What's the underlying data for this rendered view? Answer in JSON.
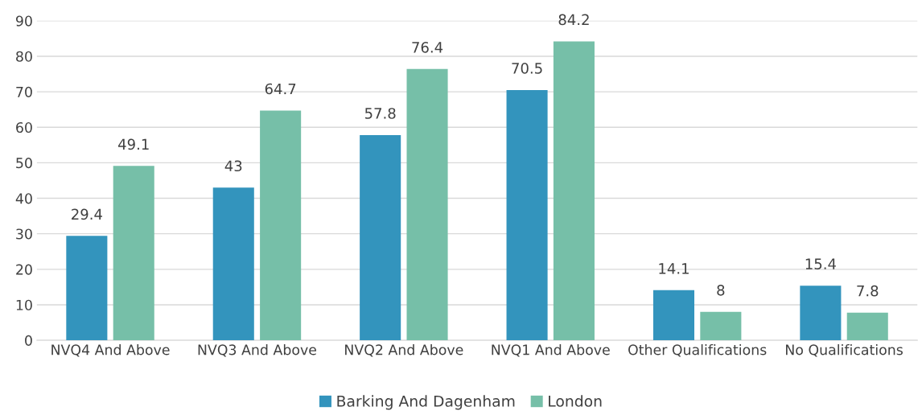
{
  "chart_data": {
    "type": "bar",
    "categories": [
      "NVQ4 And Above",
      "NVQ3 And Above",
      "NVQ2 And Above",
      "NVQ1 And Above",
      "Other Qualifications",
      "No Qualifications"
    ],
    "series": [
      {
        "name": "Barking And Dagenham",
        "color": "#3394bd",
        "values": [
          29.4,
          43,
          57.8,
          70.5,
          14.1,
          15.4
        ]
      },
      {
        "name": "London",
        "color": "#76bfa8",
        "values": [
          49.1,
          64.7,
          76.4,
          84.2,
          8,
          7.8
        ]
      }
    ],
    "ylim": [
      0,
      90
    ],
    "yticks": [
      0,
      10,
      20,
      30,
      40,
      50,
      60,
      70,
      80,
      90
    ],
    "grid": "y",
    "legend": "bottom",
    "data_labels": true
  }
}
